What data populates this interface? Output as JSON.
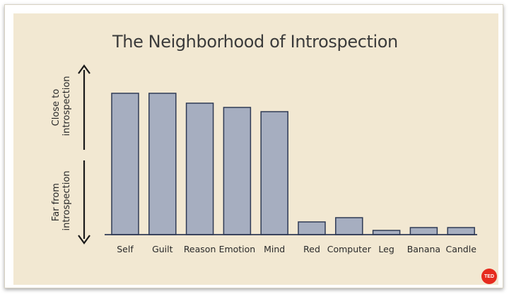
{
  "slide": {
    "background_color": "#f2e8d2",
    "badge_text": "TED",
    "badge_color": "#e62b1e"
  },
  "chart_data": {
    "type": "bar",
    "title": "The Neighborhood of Introspection",
    "xlabel": "",
    "ylabel": "",
    "y_axis_labels": {
      "top": [
        "Close to",
        "introspection"
      ],
      "bottom": [
        "Far from",
        "introspection"
      ]
    },
    "categories": [
      "Self",
      "Guilt",
      "Reason",
      "Emotion",
      "Mind",
      "Red",
      "Computer",
      "Leg",
      "Banana",
      "Candle"
    ],
    "values": [
      100,
      100,
      93,
      90,
      87,
      9,
      12,
      3,
      5,
      5
    ],
    "ylim": [
      0,
      100
    ],
    "grid": false,
    "bar_color": "#a6aec0",
    "bar_outline_color": "#2f3a55"
  }
}
